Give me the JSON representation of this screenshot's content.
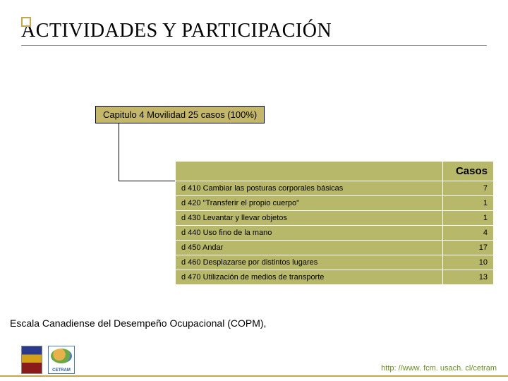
{
  "title": "ACTIVIDADES Y PARTICIPACIÓN",
  "chapter_box": "Capitulo 4 Movilidad  25 casos (100%)",
  "table": {
    "header": "Casos",
    "header_fontsize": 15,
    "cell_fontsize": 11,
    "background_color": "#b8b86a",
    "border_color": "#ffffff",
    "rows": [
      {
        "label": "d 410 Cambiar las posturas corporales básicas",
        "value": "7"
      },
      {
        "label": "d 420 \"Transferir el propio cuerpo\"",
        "value": "1"
      },
      {
        "label": "d 430 Levantar y llevar objetos",
        "value": "1"
      },
      {
        "label": "d 440 Uso fino de la mano",
        "value": "4"
      },
      {
        "label": "d 450 Andar",
        "value": "17"
      },
      {
        "label": "d 460 Desplazarse por distintos lugares",
        "value": "10"
      },
      {
        "label": "d 470 Utilización de medios de transporte",
        "value": "13"
      }
    ]
  },
  "footer_text": "Escala Canadiense del Desempeño Ocupacional (COPM),",
  "url": "http: //www. fcm. usach. cl/cetram",
  "colors": {
    "accent": "#c4a84a",
    "chapter_bg": "#c4b76a",
    "url_color": "#6b8e23"
  }
}
